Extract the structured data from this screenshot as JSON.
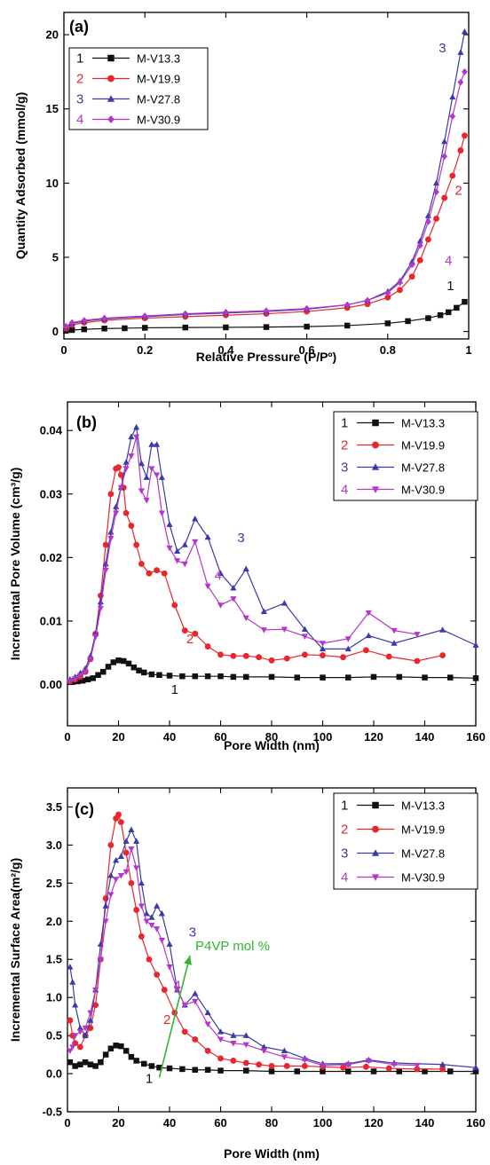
{
  "colors": {
    "black": "#111111",
    "red": "#e8262b",
    "blue": "#3a3aa8",
    "magenta": "#b536c8",
    "green": "#2fb52f"
  },
  "chart_data": [
    {
      "type": "line",
      "panel_label": "(a)",
      "xlabel": "Relative Pressure (P/Pº)",
      "ylabel": "Quantity Adsorbed (mmol/g)",
      "xlim": [
        0,
        1
      ],
      "ylim": [
        -0.5,
        21.5
      ],
      "xticks": [
        0,
        0.2,
        0.4,
        0.6,
        0.8,
        1
      ],
      "xticklabels": [
        "0",
        "0.2",
        "0.4",
        "0.6",
        "0.8",
        "1"
      ],
      "yticks": [
        0,
        5,
        10,
        15,
        20
      ],
      "yticklabels": [
        "0",
        "5",
        "10",
        "15",
        "20"
      ],
      "legend_position": "top-left",
      "series": [
        {
          "name": "M-V13.3",
          "index": "1",
          "color": "#111111",
          "marker": "square",
          "x": [
            0.005,
            0.02,
            0.05,
            0.1,
            0.15,
            0.2,
            0.3,
            0.4,
            0.5,
            0.6,
            0.7,
            0.8,
            0.85,
            0.9,
            0.93,
            0.95,
            0.97,
            0.99
          ],
          "y": [
            0.05,
            0.1,
            0.15,
            0.2,
            0.22,
            0.25,
            0.27,
            0.28,
            0.3,
            0.33,
            0.4,
            0.55,
            0.7,
            0.9,
            1.1,
            1.3,
            1.6,
            2.0
          ]
        },
        {
          "name": "M-V19.9",
          "index": "2",
          "color": "#e8262b",
          "marker": "circle",
          "x": [
            0.005,
            0.02,
            0.05,
            0.1,
            0.2,
            0.3,
            0.4,
            0.5,
            0.6,
            0.7,
            0.75,
            0.8,
            0.83,
            0.86,
            0.88,
            0.9,
            0.92,
            0.94,
            0.96,
            0.98,
            0.99
          ],
          "y": [
            0.2,
            0.45,
            0.6,
            0.75,
            0.9,
            1.0,
            1.1,
            1.2,
            1.35,
            1.6,
            1.85,
            2.3,
            2.8,
            3.7,
            4.8,
            6.2,
            7.6,
            9.0,
            10.5,
            12.2,
            13.2
          ]
        },
        {
          "name": "M-V27.8",
          "index": "3",
          "color": "#3a3aa8",
          "marker": "triangle-up",
          "x": [
            0.005,
            0.02,
            0.05,
            0.1,
            0.2,
            0.3,
            0.4,
            0.5,
            0.6,
            0.7,
            0.75,
            0.8,
            0.83,
            0.86,
            0.88,
            0.9,
            0.92,
            0.94,
            0.96,
            0.98,
            0.99
          ],
          "y": [
            0.3,
            0.55,
            0.7,
            0.85,
            1.0,
            1.15,
            1.25,
            1.35,
            1.5,
            1.8,
            2.1,
            2.7,
            3.4,
            4.7,
            6.1,
            7.8,
            10.0,
            12.8,
            15.8,
            18.8,
            20.2
          ]
        },
        {
          "name": "M-V30.9",
          "index": "4",
          "color": "#b536c8",
          "marker": "diamond",
          "x": [
            0.005,
            0.02,
            0.05,
            0.1,
            0.2,
            0.3,
            0.4,
            0.5,
            0.6,
            0.7,
            0.75,
            0.8,
            0.83,
            0.86,
            0.88,
            0.9,
            0.92,
            0.94,
            0.96,
            0.98,
            0.99
          ],
          "y": [
            0.35,
            0.6,
            0.75,
            0.9,
            1.05,
            1.2,
            1.3,
            1.4,
            1.55,
            1.8,
            2.1,
            2.6,
            3.3,
            4.5,
            5.8,
            7.4,
            9.4,
            11.8,
            14.5,
            16.8,
            17.5
          ]
        }
      ],
      "annotations": [
        {
          "text": "1",
          "x": 0.955,
          "y": 2.8,
          "color": "#111111"
        },
        {
          "text": "2",
          "x": 0.975,
          "y": 9.2,
          "color": "#e8262b"
        },
        {
          "text": "3",
          "x": 0.935,
          "y": 18.8,
          "color": "#3a3aa8"
        },
        {
          "text": "4",
          "x": 0.95,
          "y": 4.5,
          "color": "#b536c8"
        }
      ]
    },
    {
      "type": "line",
      "panel_label": "(b)",
      "xlabel": "Pore Width (nm)",
      "ylabel": "Incremental Pore Volume (cm³/g)",
      "xlim": [
        0,
        160
      ],
      "ylim": [
        -0.0065,
        0.0445
      ],
      "xticks": [
        0,
        20,
        40,
        60,
        80,
        100,
        120,
        140,
        160
      ],
      "xticklabels": [
        "0",
        "20",
        "40",
        "60",
        "80",
        "100",
        "120",
        "140",
        "160"
      ],
      "yticks": [
        0,
        0.01,
        0.02,
        0.03,
        0.04
      ],
      "yticklabels": [
        "0.00",
        "0.01",
        "0.02",
        "0.03",
        "0.04"
      ],
      "legend_position": "top-right",
      "series": [
        {
          "name": "M-V13.3",
          "index": "1",
          "color": "#111111",
          "marker": "square",
          "x": [
            2,
            4,
            6,
            8,
            10,
            12,
            14,
            16,
            18,
            20,
            22,
            24,
            26,
            28,
            30,
            33,
            36,
            40,
            45,
            50,
            55,
            60,
            65,
            70,
            80,
            90,
            100,
            110,
            120,
            130,
            140,
            150,
            160
          ],
          "y": [
            0.0004,
            0.0005,
            0.0006,
            0.0008,
            0.001,
            0.0015,
            0.002,
            0.0028,
            0.0035,
            0.0038,
            0.0037,
            0.0033,
            0.0027,
            0.0022,
            0.0019,
            0.0016,
            0.0015,
            0.0014,
            0.0013,
            0.0013,
            0.0013,
            0.0013,
            0.0012,
            0.0012,
            0.0012,
            0.0011,
            0.0011,
            0.0011,
            0.0012,
            0.0012,
            0.0011,
            0.0011,
            0.001
          ]
        },
        {
          "name": "M-V19.9",
          "index": "2",
          "color": "#e8262b",
          "marker": "circle",
          "x": [
            1,
            3,
            5,
            7,
            9,
            11,
            13,
            15,
            17,
            19,
            20,
            21,
            22,
            23,
            25,
            27,
            29,
            32,
            35,
            38,
            42,
            46,
            50,
            55,
            60,
            65,
            70,
            75,
            80,
            86,
            93,
            100,
            108,
            117,
            126,
            137,
            147
          ],
          "y": [
            0.0005,
            0.0008,
            0.0012,
            0.002,
            0.004,
            0.008,
            0.014,
            0.022,
            0.03,
            0.034,
            0.0342,
            0.033,
            0.031,
            0.027,
            0.025,
            0.022,
            0.019,
            0.0175,
            0.018,
            0.0175,
            0.0125,
            0.0085,
            0.008,
            0.006,
            0.0047,
            0.0045,
            0.0045,
            0.0043,
            0.0038,
            0.0041,
            0.0047,
            0.0046,
            0.0043,
            0.0054,
            0.0044,
            0.0037,
            0.0046
          ]
        },
        {
          "name": "M-V27.8",
          "index": "3",
          "color": "#3a3aa8",
          "marker": "triangle-up",
          "x": [
            1,
            3,
            5,
            7,
            9,
            11,
            13,
            15,
            17,
            19,
            21,
            23,
            25,
            27,
            29,
            31,
            33,
            35,
            37,
            40,
            43,
            46,
            50,
            55,
            60,
            65,
            70,
            77,
            85,
            93,
            100,
            110,
            118,
            128,
            147,
            160
          ],
          "y": [
            0.0008,
            0.0012,
            0.0018,
            0.0025,
            0.0045,
            0.008,
            0.013,
            0.019,
            0.024,
            0.028,
            0.031,
            0.035,
            0.039,
            0.0405,
            0.0348,
            0.0326,
            0.0378,
            0.0378,
            0.0326,
            0.0252,
            0.021,
            0.022,
            0.0261,
            0.0232,
            0.0175,
            0.0152,
            0.0182,
            0.0115,
            0.0128,
            0.0087,
            0.0056,
            0.0056,
            0.0077,
            0.0065,
            0.0086,
            0.0062
          ]
        },
        {
          "name": "M-V30.9",
          "index": "4",
          "color": "#b536c8",
          "marker": "triangle-down",
          "x": [
            1,
            3,
            5,
            7,
            9,
            11,
            13,
            15,
            17,
            19,
            21,
            23,
            25,
            27,
            29,
            31,
            33,
            35,
            37,
            40,
            43,
            46,
            50,
            55,
            60,
            65,
            70,
            77,
            85,
            93,
            100,
            110,
            118,
            128,
            137
          ],
          "y": [
            0.0005,
            0.0009,
            0.0014,
            0.002,
            0.004,
            0.0075,
            0.012,
            0.018,
            0.023,
            0.027,
            0.031,
            0.034,
            0.036,
            0.039,
            0.0305,
            0.029,
            0.034,
            0.033,
            0.027,
            0.0215,
            0.0195,
            0.019,
            0.0225,
            0.0155,
            0.0125,
            0.0135,
            0.0105,
            0.0086,
            0.0087,
            0.0076,
            0.0065,
            0.0072,
            0.0113,
            0.0085,
            0.0079
          ]
        }
      ],
      "annotations": [
        {
          "text": "1",
          "x": 42,
          "y": -0.0015,
          "color": "#111111"
        },
        {
          "text": "2",
          "x": 48,
          "y": 0.0065,
          "color": "#e8262b"
        },
        {
          "text": "3",
          "x": 68,
          "y": 0.0224,
          "color": "#3a3aa8"
        },
        {
          "text": "4",
          "x": 59,
          "y": 0.0165,
          "color": "#b536c8"
        }
      ]
    },
    {
      "type": "line",
      "panel_label": "(c)",
      "xlabel": "Pore Width (nm)",
      "ylabel": "Incremental Surface Area(m²/g)",
      "xlim": [
        0,
        160
      ],
      "ylim": [
        -0.5,
        3.75
      ],
      "xticks": [
        0,
        20,
        40,
        60,
        80,
        100,
        120,
        140,
        160
      ],
      "xticklabels": [
        "0",
        "20",
        "40",
        "60",
        "80",
        "100",
        "120",
        "140",
        "160"
      ],
      "yticks": [
        -0.5,
        0,
        0.5,
        1,
        1.5,
        2,
        2.5,
        3,
        3.5
      ],
      "yticklabels": [
        "-0.5",
        "0.0",
        "0.5",
        "1.0",
        "1.5",
        "2.0",
        "2.5",
        "3.0",
        "3.5"
      ],
      "legend_position": "top-right",
      "series": [
        {
          "name": "M-V13.3",
          "index": "1",
          "color": "#111111",
          "marker": "square",
          "x": [
            1,
            3,
            5,
            7,
            9,
            11,
            13,
            15,
            17,
            19,
            21,
            23,
            25,
            27,
            30,
            33,
            36,
            40,
            45,
            50,
            55,
            60,
            70,
            80,
            90,
            100,
            110,
            120,
            130,
            140,
            150,
            160
          ],
          "y": [
            0.15,
            0.1,
            0.12,
            0.15,
            0.12,
            0.1,
            0.15,
            0.25,
            0.33,
            0.37,
            0.36,
            0.3,
            0.22,
            0.17,
            0.13,
            0.1,
            0.08,
            0.07,
            0.06,
            0.05,
            0.05,
            0.04,
            0.04,
            0.03,
            0.03,
            0.03,
            0.03,
            0.03,
            0.03,
            0.03,
            0.03,
            0.03
          ]
        },
        {
          "name": "M-V19.9",
          "index": "2",
          "color": "#e8262b",
          "marker": "circle",
          "x": [
            1,
            2,
            3,
            5,
            7,
            9,
            11,
            13,
            15,
            17,
            19,
            20,
            21,
            23,
            25,
            27,
            29,
            32,
            35,
            38,
            42,
            46,
            50,
            55,
            60,
            65,
            70,
            75,
            80,
            86,
            93,
            100,
            108,
            117,
            126,
            137,
            147
          ],
          "y": [
            0.7,
            0.5,
            0.4,
            0.35,
            0.5,
            0.6,
            0.9,
            1.5,
            2.3,
            3.0,
            3.35,
            3.4,
            3.3,
            2.9,
            2.5,
            2.15,
            1.8,
            1.5,
            1.3,
            1.1,
            0.8,
            0.55,
            0.45,
            0.3,
            0.2,
            0.17,
            0.14,
            0.12,
            0.1,
            0.1,
            0.1,
            0.09,
            0.08,
            0.09,
            0.07,
            0.06,
            0.06
          ]
        },
        {
          "name": "M-V27.8",
          "index": "3",
          "color": "#3a3aa8",
          "marker": "triangle-up",
          "x": [
            1,
            2,
            3,
            5,
            7,
            9,
            11,
            13,
            15,
            17,
            19,
            21,
            23,
            25,
            27,
            29,
            31,
            33,
            35,
            37,
            40,
            43,
            46,
            50,
            55,
            60,
            65,
            70,
            77,
            85,
            93,
            100,
            110,
            118,
            128,
            147,
            160
          ],
          "y": [
            1.4,
            1.2,
            0.9,
            0.6,
            0.5,
            0.7,
            1.1,
            1.7,
            2.2,
            2.6,
            2.8,
            2.85,
            3.05,
            3.2,
            3.05,
            2.5,
            2.1,
            2.05,
            2.2,
            2.1,
            1.7,
            1.1,
            0.9,
            1.05,
            0.8,
            0.55,
            0.5,
            0.5,
            0.35,
            0.3,
            0.2,
            0.13,
            0.13,
            0.18,
            0.14,
            0.12,
            0.08
          ]
        },
        {
          "name": "M-V30.9",
          "index": "4",
          "color": "#b536c8",
          "marker": "triangle-down",
          "x": [
            1,
            2,
            3,
            5,
            7,
            9,
            11,
            13,
            15,
            17,
            19,
            21,
            23,
            25,
            27,
            29,
            31,
            33,
            35,
            37,
            40,
            43,
            46,
            50,
            55,
            60,
            65,
            70,
            77,
            85,
            93,
            100,
            110,
            118,
            128,
            137
          ],
          "y": [
            0.3,
            0.35,
            0.5,
            0.55,
            0.6,
            0.8,
            1.1,
            1.5,
            2.0,
            2.35,
            2.55,
            2.6,
            2.65,
            2.95,
            2.7,
            2.2,
            2.0,
            1.95,
            1.9,
            1.75,
            1.4,
            1.1,
            0.9,
            0.95,
            0.65,
            0.45,
            0.4,
            0.38,
            0.3,
            0.22,
            0.18,
            0.11,
            0.12,
            0.17,
            0.12,
            0.11
          ]
        }
      ],
      "annotations": [
        {
          "text": "1",
          "x": 32,
          "y": -0.12,
          "color": "#111111"
        },
        {
          "text": "2",
          "x": 39,
          "y": 0.65,
          "color": "#e8262b"
        },
        {
          "text": "3",
          "x": 49,
          "y": 1.8,
          "color": "#3a3aa8"
        },
        {
          "text": "4",
          "x": 43,
          "y": 1.1,
          "color": "#b536c8"
        }
      ],
      "arrow": {
        "label": "P4VP mol %",
        "x1": 36,
        "y1": -0.05,
        "x2": 48,
        "y2": 1.55,
        "color": "#2fb52f"
      }
    }
  ]
}
